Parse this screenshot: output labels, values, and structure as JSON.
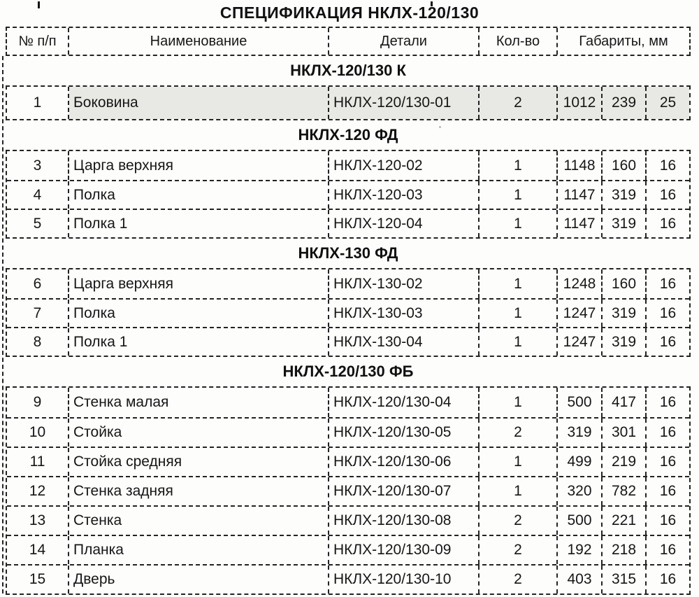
{
  "title": "СПЕЦИФИКАЦИЯ НКЛХ-120/130",
  "table": {
    "columns": [
      "№ п/п",
      "Наименование",
      "Детали",
      "Кол-во",
      "Габариты, мм"
    ],
    "highlight_color": "#e8e8e4",
    "sections": [
      {
        "header": "НКЛХ-120/130 К",
        "rows": [
          {
            "num": "1",
            "name": "Боковина",
            "detail": "НКЛХ-120/130-01",
            "qty": "2",
            "dims": [
              "1012",
              "239",
              "25"
            ],
            "highlight": true
          }
        ]
      },
      {
        "header": "НКЛХ-120 ФД",
        "rows": [
          {
            "num": "3",
            "name": "Царга верхняя",
            "detail": "НКЛХ-120-02",
            "qty": "1",
            "dims": [
              "1148",
              "160",
              "16"
            ]
          },
          {
            "num": "4",
            "name": "Полка",
            "detail": "НКЛХ-120-03",
            "qty": "1",
            "dims": [
              "1147",
              "319",
              "16"
            ]
          },
          {
            "num": "5",
            "name": "Полка 1",
            "detail": "НКЛХ-120-04",
            "qty": "1",
            "dims": [
              "1147",
              "319",
              "16"
            ]
          }
        ]
      },
      {
        "header": "НКЛХ-130 ФД",
        "rows": [
          {
            "num": "6",
            "name": "Царга верхняя",
            "detail": "НКЛХ-130-02",
            "qty": "1",
            "dims": [
              "1248",
              "160",
              "16"
            ]
          },
          {
            "num": "7",
            "name": "Полка",
            "detail": "НКЛХ-130-03",
            "qty": "1",
            "dims": [
              "1247",
              "319",
              "16"
            ]
          },
          {
            "num": "8",
            "name": "Полка 1",
            "detail": "НКЛХ-130-04",
            "qty": "1",
            "dims": [
              "1247",
              "319",
              "16"
            ]
          }
        ]
      },
      {
        "header": "НКЛХ-120/130 ФБ",
        "rows": [
          {
            "num": "9",
            "name": "Стенка малая",
            "detail": "НКЛХ-120/130-04",
            "qty": "1",
            "dims": [
              "500",
              "417",
              "16"
            ]
          },
          {
            "num": "10",
            "name": "Стойка",
            "detail": "НКЛХ-120/130-05",
            "qty": "2",
            "dims": [
              "319",
              "301",
              "16"
            ]
          },
          {
            "num": "11",
            "name": "Стойка средняя",
            "detail": "НКЛХ-120/130-06",
            "qty": "1",
            "dims": [
              "499",
              "219",
              "16"
            ]
          },
          {
            "num": "12",
            "name": "Стенка задняя",
            "detail": "НКЛХ-120/130-07",
            "qty": "1",
            "dims": [
              "320",
              "782",
              "16"
            ]
          },
          {
            "num": "13",
            "name": "Стенка",
            "detail": "НКЛХ-120/130-08",
            "qty": "2",
            "dims": [
              "500",
              "221",
              "16"
            ]
          },
          {
            "num": "14",
            "name": "Планка",
            "detail": "НКЛХ-120/130-09",
            "qty": "2",
            "dims": [
              "192",
              "218",
              "16"
            ]
          },
          {
            "num": "15",
            "name": "Дверь",
            "detail": "НКЛХ-120/130-10",
            "qty": "2",
            "dims": [
              "403",
              "315",
              "16"
            ]
          }
        ]
      }
    ]
  }
}
